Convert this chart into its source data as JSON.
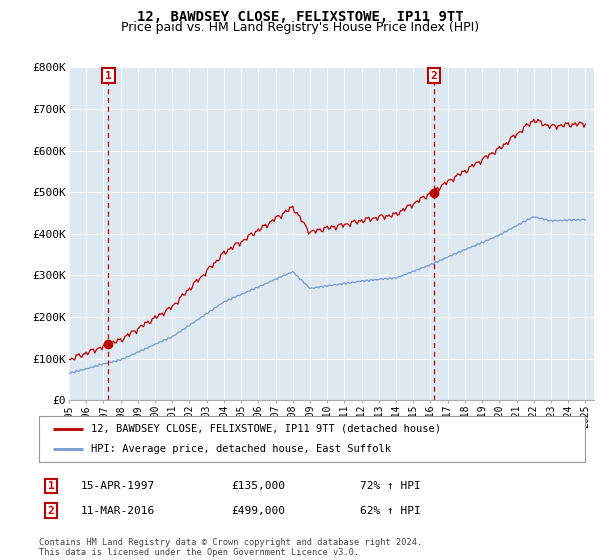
{
  "title": "12, BAWDSEY CLOSE, FELIXSTOWE, IP11 9TT",
  "subtitle": "Price paid vs. HM Land Registry's House Price Index (HPI)",
  "ylim": [
    0,
    800000
  ],
  "yticks": [
    0,
    100000,
    200000,
    300000,
    400000,
    500000,
    600000,
    700000,
    800000
  ],
  "ytick_labels": [
    "£0",
    "£100K",
    "£200K",
    "£300K",
    "£400K",
    "£500K",
    "£600K",
    "£700K",
    "£800K"
  ],
  "legend_line1": "12, BAWDSEY CLOSE, FELIXSTOWE, IP11 9TT (detached house)",
  "legend_line2": "HPI: Average price, detached house, East Suffolk",
  "red_line_color": "#bb0000",
  "blue_line_color": "#7799cc",
  "plot_bg_color": "#dde8f0",
  "grid_color": "#ffffff",
  "transaction1_date": "15-APR-1997",
  "transaction1_price": 135000,
  "transaction1_hpi": "72% ↑ HPI",
  "transaction2_date": "11-MAR-2016",
  "transaction2_price": 499000,
  "transaction2_hpi": "62% ↑ HPI",
  "vline1_year": 1997.29,
  "vline2_year": 2016.19,
  "footer": "Contains HM Land Registry data © Crown copyright and database right 2024.\nThis data is licensed under the Open Government Licence v3.0.",
  "bg_color": "#ffffff",
  "title_fontsize": 10,
  "subtitle_fontsize": 9
}
